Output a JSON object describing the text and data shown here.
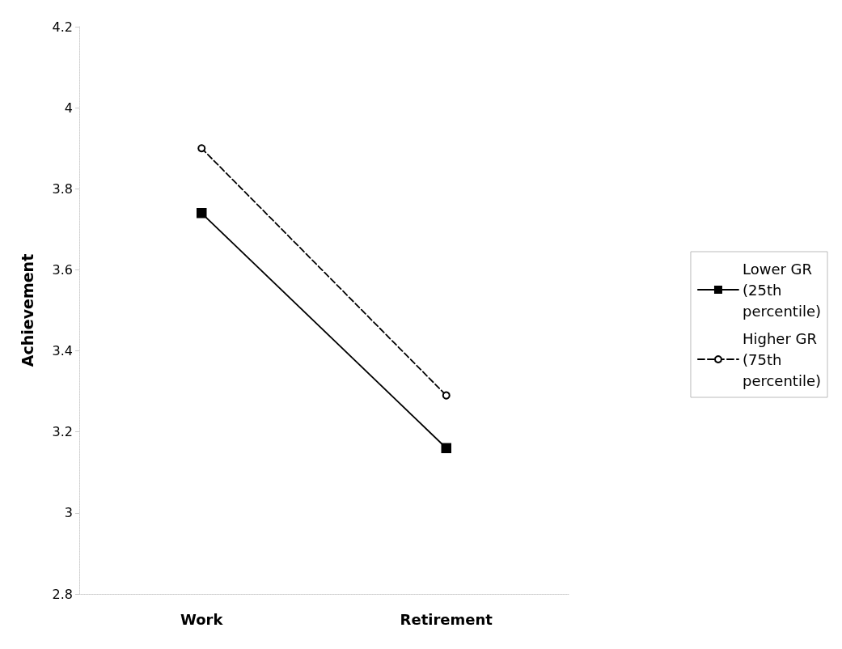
{
  "chart_data": {
    "type": "line",
    "ylabel": "Achievement",
    "categories": [
      "Work",
      "Retirement"
    ],
    "series": [
      {
        "name": "Lower GR (25th percentile)",
        "color": "#000000",
        "values": [
          3.74,
          3.16
        ],
        "marker": "square",
        "line_style": "solid"
      },
      {
        "name": "Higher GR (75th percentile)",
        "color": "#000000",
        "values": [
          3.9,
          3.29
        ],
        "marker": "circle",
        "line_style": "dashed"
      }
    ],
    "ylim": [
      2.8,
      4.2
    ],
    "yticks": [
      2.8,
      3,
      3.2,
      3.4,
      3.6,
      3.8,
      4,
      4.2
    ],
    "grid": false,
    "legend": "right"
  }
}
